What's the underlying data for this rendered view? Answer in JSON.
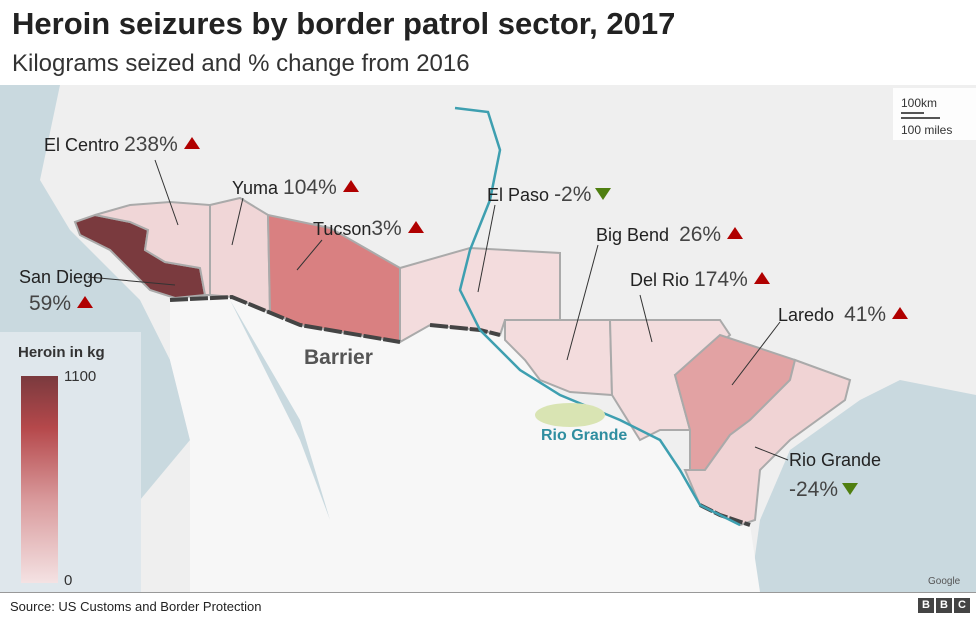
{
  "title": "Heroin seizures by border patrol sector, 2017",
  "subtitle": "Kilograms seized and % change from 2016",
  "colors": {
    "land_us": "#efefef",
    "land_mexico": "#f7f7f7",
    "sea": "#c9d9df",
    "river": "#3e9fb0",
    "barrier": "#444444",
    "increase": "#b00000",
    "decrease": "#4f7f10",
    "scale_max": "#7a3a3e",
    "scale_min": "#f4e2e3"
  },
  "sectors": [
    {
      "name": "San Diego",
      "change": "59%",
      "direction": "up",
      "fill": "#7a3a3e"
    },
    {
      "name": "El Centro",
      "change": "238%",
      "direction": "up",
      "fill": "#f0d6d7"
    },
    {
      "name": "Yuma",
      "change": "104%",
      "direction": "up",
      "fill": "#f0d6d7"
    },
    {
      "name": "Tucson",
      "change": "3%",
      "direction": "up",
      "fill": "#d98081"
    },
    {
      "name": "El Paso",
      "change": "-2%",
      "direction": "down",
      "fill": "#f3dcdd"
    },
    {
      "name": "Big Bend",
      "change": "26%",
      "direction": "up",
      "fill": "#f3dcdd"
    },
    {
      "name": "Del Rio",
      "change": "174%",
      "direction": "up",
      "fill": "#f3dcdd"
    },
    {
      "name": "Laredo",
      "change": "41%",
      "direction": "up",
      "fill": "#e2a2a3"
    },
    {
      "name": "Rio Grande",
      "change": "-24%",
      "direction": "down",
      "fill": "#f0d3d4"
    }
  ],
  "map_labels": {
    "barrier": "Barrier",
    "river": "Rio Grande"
  },
  "legend": {
    "title": "Heroin in kg",
    "max": "1100",
    "min": "0"
  },
  "scale_bar": {
    "km": "100km",
    "miles": "100 miles"
  },
  "attribution": "Google",
  "footer": {
    "source": "Source: US Customs and Border Protection",
    "logo": [
      "B",
      "B",
      "C"
    ]
  }
}
